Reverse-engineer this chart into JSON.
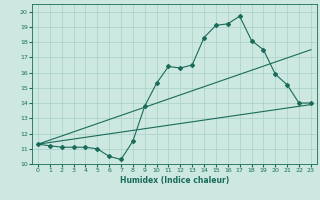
{
  "title": "",
  "xlabel": "Humidex (Indice chaleur)",
  "ylabel": "",
  "bg_color": "#cce8e0",
  "line_color": "#1a6b5a",
  "xlim": [
    -0.5,
    23.5
  ],
  "ylim": [
    10,
    20.5
  ],
  "xticks": [
    0,
    1,
    2,
    3,
    4,
    5,
    6,
    7,
    8,
    9,
    10,
    11,
    12,
    13,
    14,
    15,
    16,
    17,
    18,
    19,
    20,
    21,
    22,
    23
  ],
  "yticks": [
    10,
    11,
    12,
    13,
    14,
    15,
    16,
    17,
    18,
    19,
    20
  ],
  "curve_x": [
    0,
    1,
    2,
    3,
    4,
    5,
    6,
    7,
    8,
    9,
    10,
    11,
    12,
    13,
    14,
    15,
    16,
    17,
    18,
    19,
    20,
    21,
    22,
    23
  ],
  "curve_y": [
    11.3,
    11.2,
    11.1,
    11.1,
    11.1,
    11.0,
    10.5,
    10.3,
    11.5,
    13.8,
    15.3,
    16.4,
    16.3,
    16.5,
    18.3,
    19.1,
    19.2,
    19.7,
    18.1,
    17.5,
    15.9,
    15.2,
    14.0,
    14.0
  ],
  "line1_x": [
    0,
    23
  ],
  "line1_y": [
    11.3,
    17.5
  ],
  "line2_x": [
    0,
    23
  ],
  "line2_y": [
    11.3,
    13.9
  ],
  "grid_color": "#a8d0c8"
}
